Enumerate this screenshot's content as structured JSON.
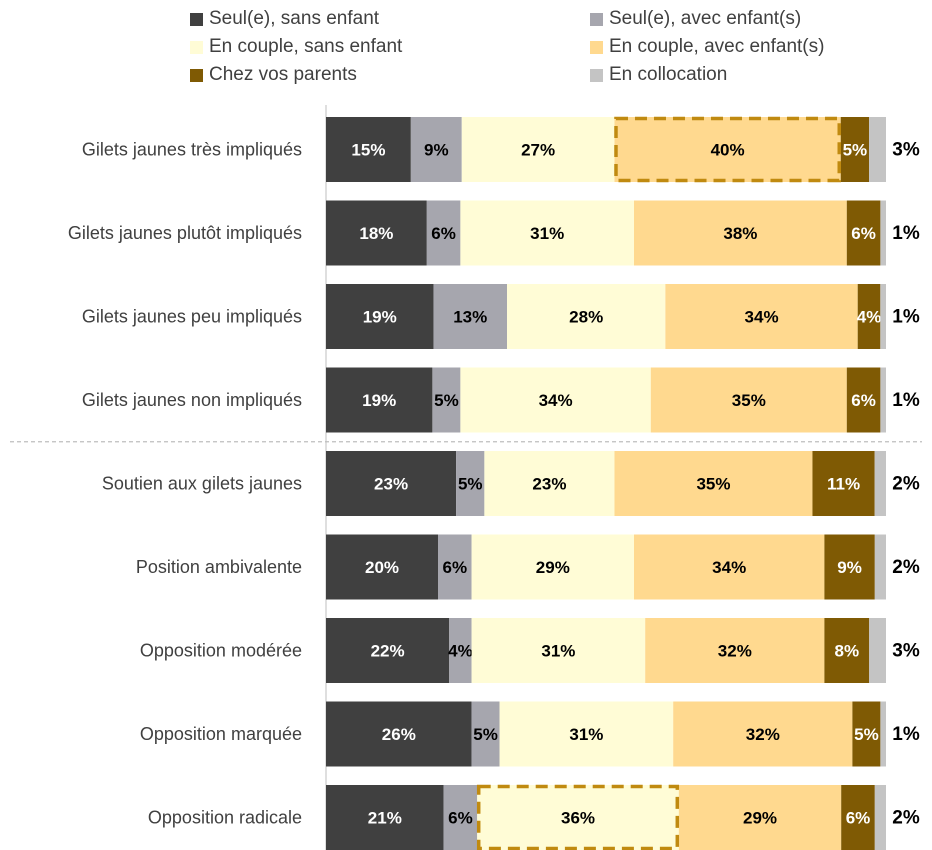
{
  "chart_data": {
    "type": "bar",
    "orientation": "horizontal",
    "stacked": true,
    "normalized": true,
    "unit": "%",
    "legend_position": "top",
    "categories": [
      "Gilets jaunes très impliqués",
      "Gilets jaunes plutôt impliqués",
      "Gilets jaunes peu impliqués",
      "Gilets jaunes non impliqués",
      "Soutien aux gilets jaunes",
      "Position ambivalente",
      "Opposition modérée",
      "Opposition marquée",
      "Opposition radicale"
    ],
    "series": [
      {
        "name": "Seul(e), sans enfant",
        "color": "#404040",
        "values": [
          15,
          18,
          19,
          19,
          23,
          20,
          22,
          26,
          21
        ]
      },
      {
        "name": "Seul(e), avec enfant(s)",
        "color": "#a6a6ae",
        "values": [
          9,
          6,
          13,
          5,
          5,
          6,
          4,
          5,
          6
        ]
      },
      {
        "name": "En couple, sans enfant",
        "color": "#fffcd6",
        "values": [
          27,
          31,
          28,
          34,
          23,
          29,
          31,
          31,
          36
        ]
      },
      {
        "name": "En couple, avec enfant(s)",
        "color": "#ffd98f",
        "values": [
          40,
          38,
          34,
          35,
          35,
          34,
          32,
          32,
          29
        ]
      },
      {
        "name": "Chez vos parents",
        "color": "#7f5a04",
        "values": [
          5,
          6,
          4,
          6,
          11,
          9,
          8,
          5,
          6
        ]
      },
      {
        "name": "En collocation",
        "color": "#c4c4c4",
        "values": [
          3,
          1,
          1,
          1,
          2,
          2,
          3,
          1,
          2
        ]
      }
    ],
    "highlights": [
      {
        "category": "Gilets jaunes très impliqués",
        "series": "En couple, avec enfant(s)",
        "style": "dashed-outline",
        "color": "#c08a10"
      },
      {
        "category": "Opposition radicale",
        "series": "En couple, sans enfant",
        "style": "dashed-outline",
        "color": "#c08a10"
      }
    ],
    "separator_after_category_index": 3,
    "label_colors": {
      "dark": "#ffffff",
      "light": "#000000"
    }
  }
}
